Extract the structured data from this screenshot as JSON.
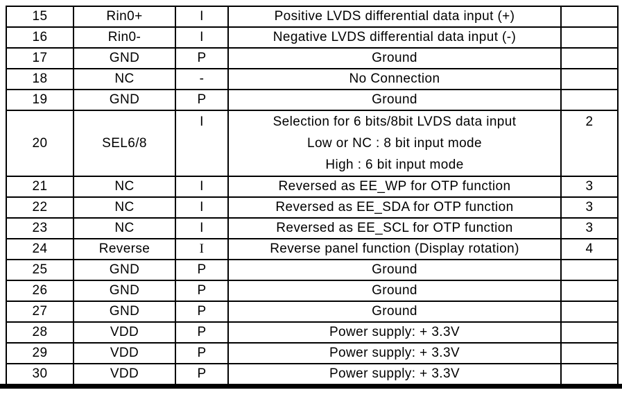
{
  "colors": {
    "border": "#000000",
    "text": "#000000",
    "background": "#ffffff"
  },
  "table": {
    "rows": [
      {
        "pin": "15",
        "symbol": "Rin0+",
        "io": "I",
        "desc": [
          "Positive LVDS differential data input (+)"
        ],
        "note": ""
      },
      {
        "pin": "16",
        "symbol": "Rin0-",
        "io": "I",
        "desc": [
          "Negative LVDS differential data input (-)"
        ],
        "note": ""
      },
      {
        "pin": "17",
        "symbol": "GND",
        "io": "P",
        "desc": [
          "Ground"
        ],
        "note": ""
      },
      {
        "pin": "18",
        "symbol": "NC",
        "io": "-",
        "desc": [
          "No Connection"
        ],
        "note": ""
      },
      {
        "pin": "19",
        "symbol": "GND",
        "io": "P",
        "desc": [
          "Ground"
        ],
        "note": ""
      },
      {
        "pin": "20",
        "symbol": "SEL6/8",
        "io": "I",
        "desc": [
          "Selection for 6 bits/8bit LVDS data input",
          "Low or NC : 8 bit input mode",
          "High : 6 bit input mode"
        ],
        "note": "2"
      },
      {
        "pin": "21",
        "symbol": "NC",
        "io": "I",
        "desc": [
          "Reversed as EE_WP for OTP function"
        ],
        "note": "3"
      },
      {
        "pin": "22",
        "symbol": "NC",
        "io": "I",
        "desc": [
          "Reversed as EE_SDA for OTP function"
        ],
        "note": "3"
      },
      {
        "pin": "23",
        "symbol": "NC",
        "io": "I",
        "desc": [
          "Reversed as EE_SCL for OTP function"
        ],
        "note": "3"
      },
      {
        "pin": "24",
        "symbol": "Reverse",
        "io": "I",
        "desc": [
          "Reverse panel function (Display rotation)"
        ],
        "note": "4"
      },
      {
        "pin": "25",
        "symbol": "GND",
        "io": "P",
        "desc": [
          "Ground"
        ],
        "note": ""
      },
      {
        "pin": "26",
        "symbol": "GND",
        "io": "P",
        "desc": [
          "Ground"
        ],
        "note": ""
      },
      {
        "pin": "27",
        "symbol": "GND",
        "io": "P",
        "desc": [
          "Ground"
        ],
        "note": ""
      },
      {
        "pin": "28",
        "symbol": "VDD",
        "io": "P",
        "desc": [
          "Power supply: + 3.3V"
        ],
        "note": ""
      },
      {
        "pin": "29",
        "symbol": "VDD",
        "io": "P",
        "desc": [
          "Power supply: + 3.3V"
        ],
        "note": ""
      },
      {
        "pin": "30",
        "symbol": "VDD",
        "io": "P",
        "desc": [
          "Power supply: + 3.3V"
        ],
        "note": ""
      }
    ]
  }
}
